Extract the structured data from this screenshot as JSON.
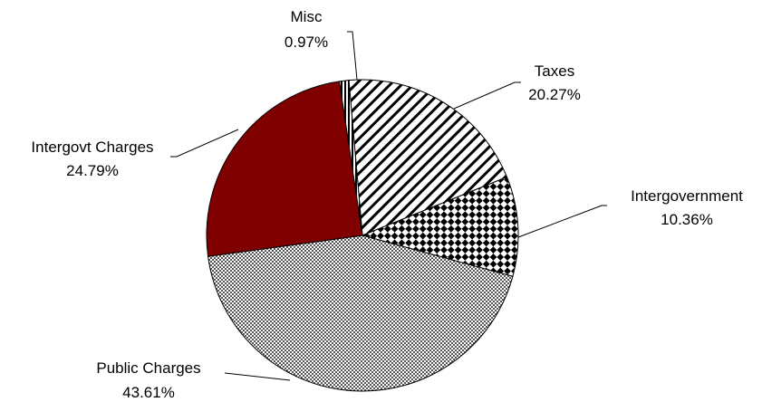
{
  "chart_data": {
    "type": "pie",
    "title": "",
    "start_angle_deg": -5,
    "direction": "clockwise",
    "slices": [
      {
        "name": "Taxes",
        "value": 20.27,
        "pct_label": "20.27%",
        "pattern": "diagonal-stripes",
        "color": "#000000"
      },
      {
        "name": "Intergovernment",
        "value": 10.36,
        "pct_label": "10.36%",
        "pattern": "diamond-checker",
        "color": "#000000"
      },
      {
        "name": "Public Charges",
        "value": 43.61,
        "pct_label": "43.61%",
        "pattern": "fine-dots",
        "color": "#555555"
      },
      {
        "name": "Intergovt Charges",
        "value": 24.79,
        "pct_label": "24.79%",
        "pattern": "solid",
        "color": "#800000"
      },
      {
        "name": "Misc",
        "value": 0.97,
        "pct_label": "0.97%",
        "pattern": "vertical-stripes",
        "color": "#000000"
      }
    ]
  }
}
